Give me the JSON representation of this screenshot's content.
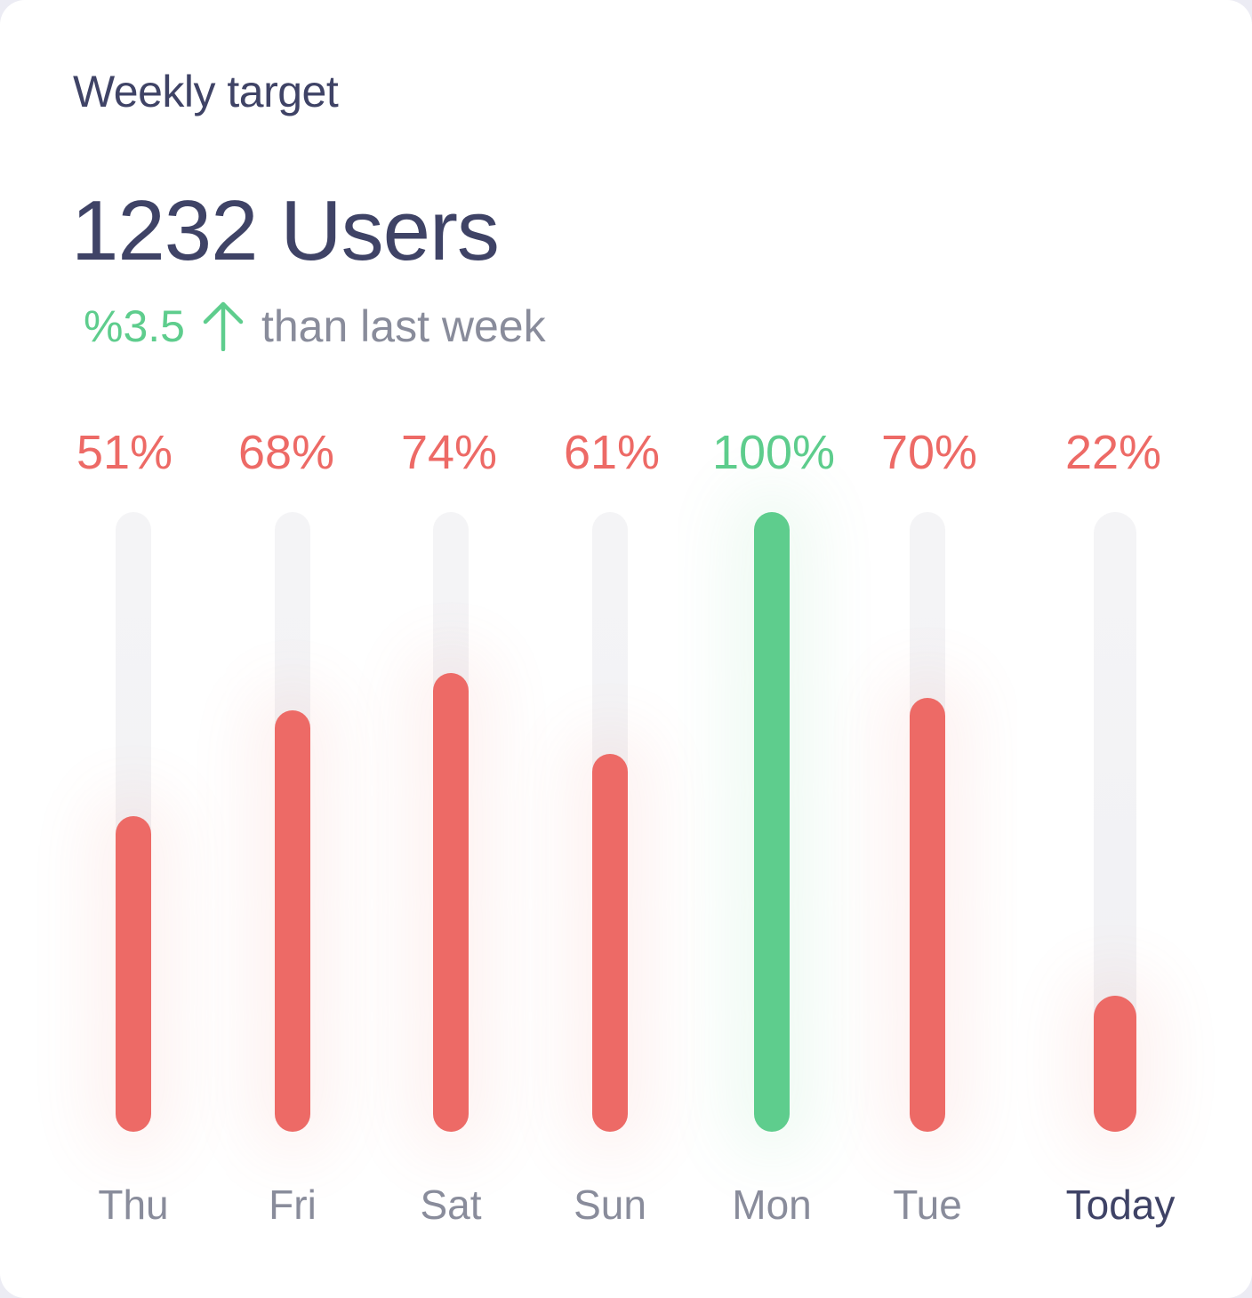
{
  "card": {
    "title": "Weekly target",
    "total": "1232 Users",
    "change": "%3.5",
    "change_icon": "arrow-up-icon",
    "change_text": "than last week"
  },
  "colors": {
    "below_target": "#ED6A66",
    "target_met": "#5ECD8D",
    "track": "#F4F4F6",
    "text": "#3F4366",
    "muted": "#898C9B"
  },
  "chart_data": {
    "type": "bar",
    "orientation": "vertical",
    "categories": [
      "Thu",
      "Fri",
      "Sat",
      "Sun",
      "Mon",
      "Tue",
      "Today"
    ],
    "values": [
      51,
      68,
      74,
      61,
      100,
      70,
      22
    ],
    "labels": [
      "51%",
      "68%",
      "74%",
      "61%",
      "100%",
      "70%",
      "22%"
    ],
    "ylim": [
      0,
      100
    ],
    "grid": false
  }
}
